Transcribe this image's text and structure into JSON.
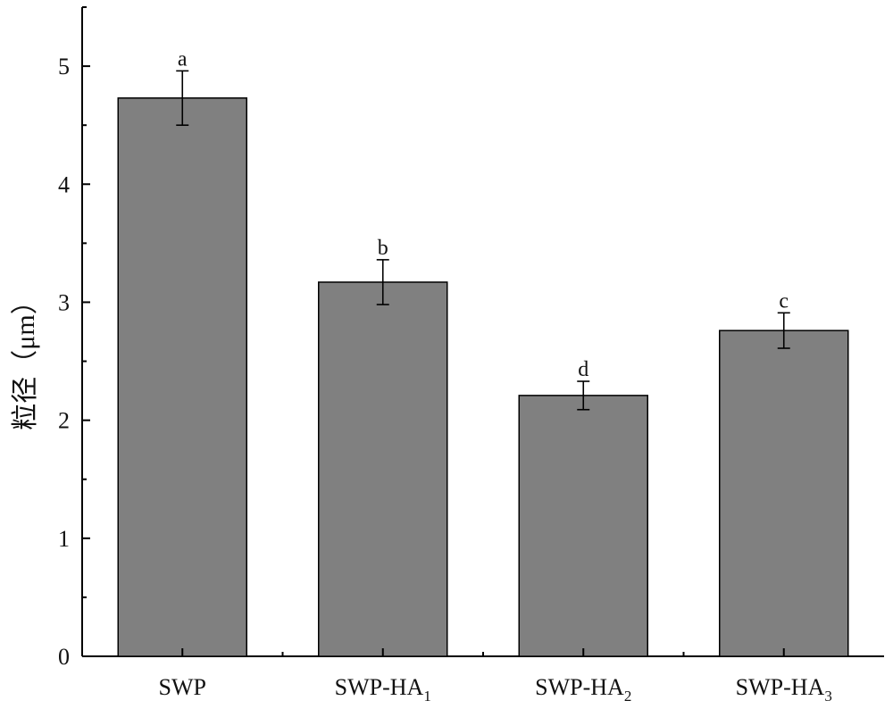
{
  "chart_data": {
    "type": "bar",
    "categories": [
      {
        "base": "SWP",
        "sub": ""
      },
      {
        "base": "SWP-HA",
        "sub": "1"
      },
      {
        "base": "SWP-HA",
        "sub": "2"
      },
      {
        "base": "SWP-HA",
        "sub": "3"
      }
    ],
    "values": [
      4.73,
      3.17,
      2.21,
      2.76
    ],
    "errors": [
      0.23,
      0.19,
      0.12,
      0.15
    ],
    "significance": [
      "a",
      "b",
      "d",
      "c"
    ],
    "ylabel": "粒径（μm）",
    "xlabel": "",
    "title": "",
    "ylim": [
      0,
      5.5
    ],
    "yticks": [
      0,
      1,
      2,
      3,
      4,
      5
    ],
    "grid": false,
    "legend": "none",
    "colors": {
      "bar": "#808080",
      "edge": "#000000"
    }
  }
}
